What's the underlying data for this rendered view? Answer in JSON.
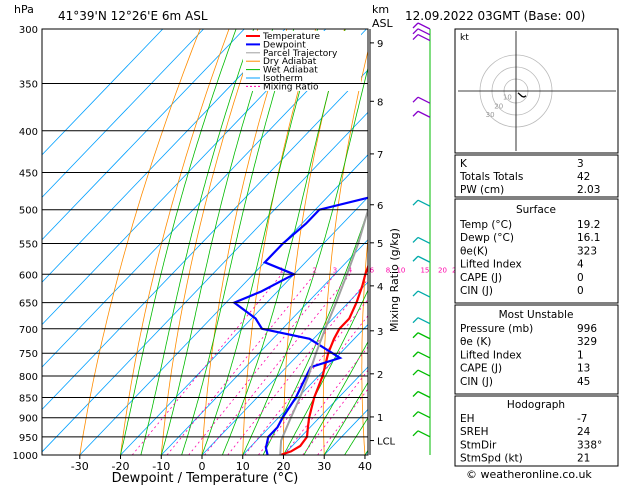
{
  "header": {
    "hpa_label": "hPa",
    "location": "41°39'N  12°26'E  6m  ASL",
    "km_label": "km",
    "asl_label": "ASL",
    "datetime": "12.09.2022  03GMT  (Base: 00)"
  },
  "credit": "© weatheronline.co.uk",
  "colors": {
    "temperature": "#ff0000",
    "dewpoint": "#0000ff",
    "parcel": "#a0a0a0",
    "dry_adiabat": "#ff8c00",
    "wet_adiabat": "#00bb00",
    "isotherm": "#00a0ff",
    "mixing_ratio": "#ff00aa"
  },
  "chart_data": {
    "type": "line",
    "title": "Skew-T log-P sounding",
    "xlabel": "Dewpoint / Temperature (°C)",
    "ylabel_left": "hPa",
    "ylabel_right": "Mixing Ratio (g/kg)",
    "xlim": [
      -35,
      40
    ],
    "ylim": [
      1000,
      300
    ],
    "x_ticks": [
      -30,
      -20,
      -10,
      0,
      10,
      20,
      30,
      40
    ],
    "p_ticks": [
      300,
      350,
      400,
      450,
      500,
      550,
      600,
      650,
      700,
      750,
      800,
      850,
      900,
      950,
      1000
    ],
    "km_ticks": [
      {
        "label": "9",
        "p": 312
      },
      {
        "label": "8",
        "p": 368
      },
      {
        "label": "7",
        "p": 427
      },
      {
        "label": "6",
        "p": 493
      },
      {
        "label": "5",
        "p": 549
      },
      {
        "label": "4",
        "p": 620
      },
      {
        "label": "3",
        "p": 704
      },
      {
        "label": "2",
        "p": 795
      },
      {
        "label": "1",
        "p": 898
      },
      {
        "label": "LCL",
        "p": 960
      }
    ],
    "mixing_ratio_labels": [
      "1",
      "2",
      "3",
      "4",
      "6",
      "8",
      "10",
      "15",
      "20",
      "25"
    ],
    "mixing_ratio_values": [
      1,
      2,
      3,
      4,
      6,
      8,
      10,
      15,
      20,
      25
    ],
    "legend": [
      "Temperature",
      "Dewpoint",
      "Parcel Trajectory",
      "Dry Adiabat",
      "Wet Adiabat",
      "Isotherm",
      "Mixing Ratio"
    ],
    "series": [
      {
        "name": "Temperature",
        "points": [
          [
            1000,
            19.2
          ],
          [
            990,
            21
          ],
          [
            975,
            22
          ],
          [
            950,
            21.5
          ],
          [
            925,
            19.5
          ],
          [
            900,
            17.5
          ],
          [
            850,
            14
          ],
          [
            800,
            11
          ],
          [
            750,
            7
          ],
          [
            720,
            5
          ],
          [
            700,
            4
          ],
          [
            680,
            4
          ],
          [
            650,
            2
          ],
          [
            620,
            -0.5
          ],
          [
            600,
            -2.5
          ],
          [
            550,
            -7
          ],
          [
            500,
            -12.5
          ],
          [
            450,
            -18
          ],
          [
            430,
            -21
          ],
          [
            400,
            -25
          ],
          [
            350,
            -32
          ],
          [
            300,
            -40
          ]
        ]
      },
      {
        "name": "Dewpoint",
        "points": [
          [
            1000,
            16.1
          ],
          [
            980,
            14
          ],
          [
            950,
            12
          ],
          [
            925,
            12
          ],
          [
            900,
            11
          ],
          [
            850,
            9.5
          ],
          [
            800,
            7
          ],
          [
            780,
            6
          ],
          [
            760,
            11
          ],
          [
            720,
            -1
          ],
          [
            700,
            -15
          ],
          [
            680,
            -19
          ],
          [
            650,
            -28
          ],
          [
            630,
            -24
          ],
          [
            600,
            -20
          ],
          [
            580,
            -30
          ],
          [
            550,
            -30
          ],
          [
            520,
            -29
          ],
          [
            500,
            -29
          ],
          [
            480,
            -18
          ],
          [
            470,
            -14
          ],
          [
            450,
            -9
          ],
          [
            440,
            -12
          ],
          [
            420,
            -11
          ],
          [
            400,
            -10
          ],
          [
            390,
            -16
          ],
          [
            370,
            -29
          ],
          [
            300,
            -32
          ]
        ]
      },
      {
        "name": "Parcel Trajectory",
        "points": [
          [
            1000,
            19.2
          ],
          [
            960,
            16
          ],
          [
            900,
            13
          ],
          [
            850,
            10.5
          ],
          [
            800,
            7.5
          ],
          [
            750,
            4
          ],
          [
            700,
            0.5
          ],
          [
            650,
            -3
          ],
          [
            600,
            -7
          ],
          [
            550,
            -11.5
          ],
          [
            500,
            -17
          ],
          [
            450,
            -23
          ],
          [
            400,
            -30
          ],
          [
            350,
            -38
          ],
          [
            300,
            -47
          ]
        ]
      }
    ],
    "wind_barbs_p": [
      300,
      305,
      310,
      370,
      385,
      495,
      550,
      580,
      640,
      690,
      720,
      760,
      800,
      850,
      900,
      950
    ],
    "stats": {
      "K": "3",
      "Totals Totals": "42",
      "PW (cm)": "2.03"
    },
    "surface": {
      "title": "Surface",
      "rows": [
        {
          "label": "Temp (°C)",
          "value": "19.2"
        },
        {
          "label": "Dewp (°C)",
          "value": "16.1"
        },
        {
          "label": "θe(K)",
          "value": "323"
        },
        {
          "label": "Lifted Index",
          "value": "4"
        },
        {
          "label": "CAPE (J)",
          "value": "0"
        },
        {
          "label": "CIN (J)",
          "value": "0"
        }
      ]
    },
    "most_unstable": {
      "title": "Most Unstable",
      "rows": [
        {
          "label": "Pressure (mb)",
          "value": "996"
        },
        {
          "label": "θe (K)",
          "value": "329"
        },
        {
          "label": "Lifted Index",
          "value": "1"
        },
        {
          "label": "CAPE (J)",
          "value": "13"
        },
        {
          "label": "CIN (J)",
          "value": "45"
        }
      ]
    },
    "hodograph_table": {
      "title": "Hodograph",
      "rows": [
        {
          "label": "EH",
          "value": "-7"
        },
        {
          "label": "SREH",
          "value": "24"
        },
        {
          "label": "StmDir",
          "value": "338°"
        },
        {
          "label": "StmSpd (kt)",
          "value": "21"
        }
      ]
    },
    "hodograph": {
      "unit_label": "kt",
      "ring_labels": [
        "10",
        "20",
        "30"
      ],
      "points": [
        [
          2,
          -3
        ],
        [
          4,
          -6
        ],
        [
          6,
          -9
        ],
        [
          8,
          -10
        ],
        [
          10,
          -8
        ]
      ]
    }
  }
}
